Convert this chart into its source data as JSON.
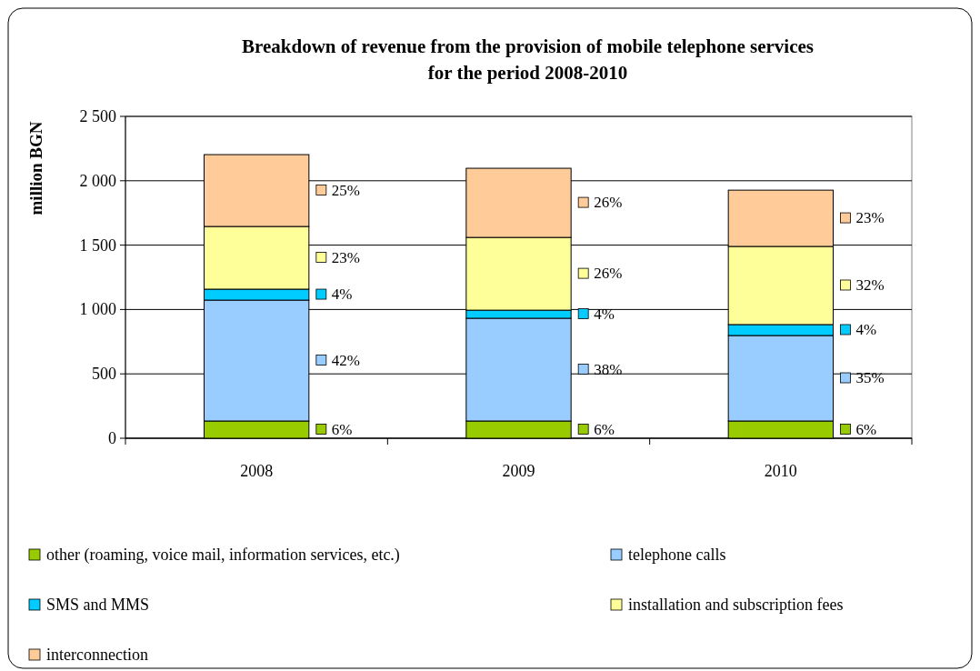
{
  "chart_data": {
    "type": "bar",
    "title": "Breakdown of revenue from the provision of mobile telephone services\nfor the period 2008-2010",
    "ylabel": "million BGN",
    "categories": [
      "2008",
      "2009",
      "2010"
    ],
    "stacked": true,
    "grid": "y",
    "legend": "bottom",
    "ylim": [
      0,
      2500
    ],
    "yticks": [
      0,
      500,
      {
        "value": 1000,
        "label": "1 000"
      },
      {
        "value": 1500,
        "label": "1 500"
      },
      {
        "value": 2000,
        "label": "2 000"
      },
      {
        "value": 2500,
        "label": "2 500"
      }
    ],
    "series": [
      {
        "name": "other (roaming, voice mail, information services, etc.)",
        "color": "#99cc00",
        "values": [
          134,
          134,
          134
        ]
      },
      {
        "name": "telephone calls",
        "color": "#99ccff",
        "values": [
          939,
          798,
          664
        ]
      },
      {
        "name": "SMS and MMS",
        "color": "#00ccff",
        "values": [
          85,
          63,
          85
        ]
      },
      {
        "name": "installation and subscription fees",
        "color": "#ffff99",
        "values": [
          487,
          565,
          607
        ]
      },
      {
        "name": "interconnection",
        "color": "#ffcc99",
        "values": [
          558,
          537,
          437
        ]
      }
    ],
    "annotations": [
      "6%",
      "42%",
      "4%",
      "23%",
      "25%",
      "6%",
      "38%",
      "4%",
      "26%",
      "26%",
      "6%",
      "35%",
      "4%",
      "32%",
      "23%"
    ]
  }
}
